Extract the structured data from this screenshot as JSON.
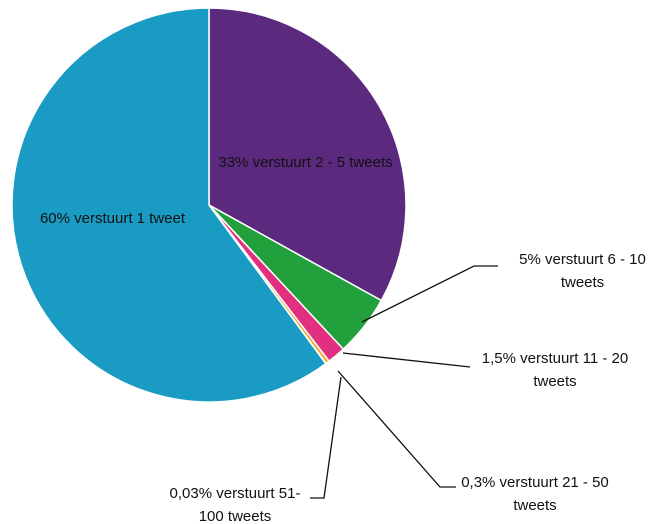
{
  "chart_data": {
    "type": "pie",
    "values": [
      33,
      5,
      1.5,
      0.3,
      0.03,
      60
    ],
    "value_labels": [
      "33% verstuurt 2 - 5 tweets",
      "5% verstuurt 6 - 10 tweets",
      "1,5% verstuurt 11 - 20 tweets",
      "0,3% verstuurt 21 - 50 tweets",
      "0,03% verstuurt 51-100 tweets",
      "60% verstuurt 1 tweet"
    ],
    "colors": [
      "#5b2a7e",
      "#22a03c",
      "#e0307f",
      "#f5a623",
      "#c8c8c8",
      "#1a9bc4"
    ]
  }
}
